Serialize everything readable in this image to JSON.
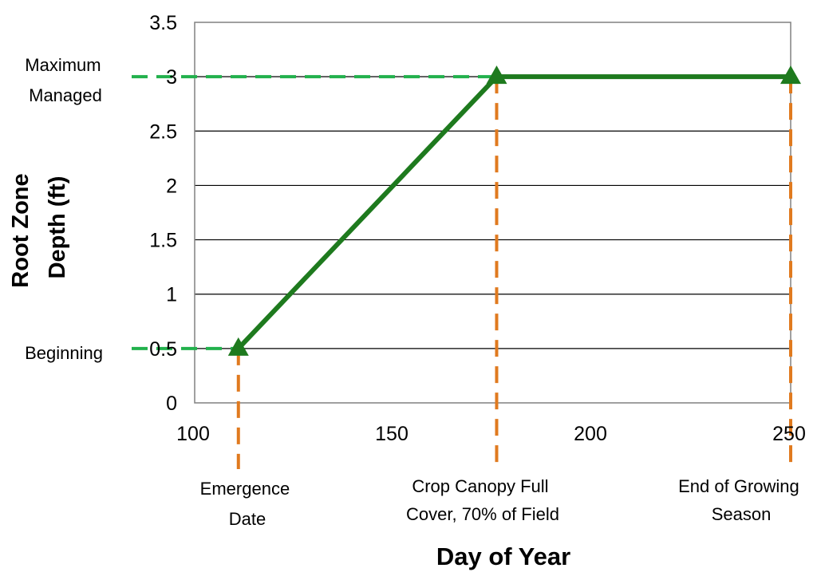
{
  "chart_data": {
    "type": "line",
    "xlabel": "Day of Year",
    "ylabel_lines": [
      "Root Zone",
      "Depth (ft)"
    ],
    "xlim": [
      100,
      250
    ],
    "ylim": [
      0,
      3.5
    ],
    "x_ticks": [
      100,
      150,
      200,
      250
    ],
    "y_ticks": [
      0,
      0.5,
      1,
      1.5,
      2,
      2.5,
      3,
      3.5
    ],
    "x_tick_labels": [
      "100",
      "150",
      "200",
      "250"
    ],
    "y_tick_labels": [
      "0",
      "0.5",
      "1",
      "1.5",
      "2",
      "2.5",
      "3",
      "3.5"
    ],
    "grid": "horizontal",
    "series": [
      {
        "x": [
          111,
          176,
          250
        ],
        "y": [
          0.5,
          3,
          3
        ],
        "color": "#1e7a1e",
        "marker": "triangle"
      }
    ],
    "reference_lines": {
      "horizontal": [
        {
          "y": 3,
          "to_x": 176,
          "color": "#22b14c"
        },
        {
          "y": 0.5,
          "to_x": 111,
          "color": "#22b14c"
        }
      ],
      "vertical": [
        {
          "x": 111,
          "color": "#e07a1f"
        },
        {
          "x": 176,
          "color": "#e07a1f"
        },
        {
          "x": 250,
          "color": "#e07a1f"
        }
      ]
    },
    "annotations": {
      "y_max": [
        "Maximum",
        "Managed"
      ],
      "y_begin": [
        "Beginning"
      ],
      "x_emergence": [
        "Emergence",
        "Date"
      ],
      "x_canopy": [
        "Crop Canopy Full",
        "Cover, 70% of Field"
      ],
      "x_end": [
        "End of Growing",
        "Season"
      ]
    }
  }
}
